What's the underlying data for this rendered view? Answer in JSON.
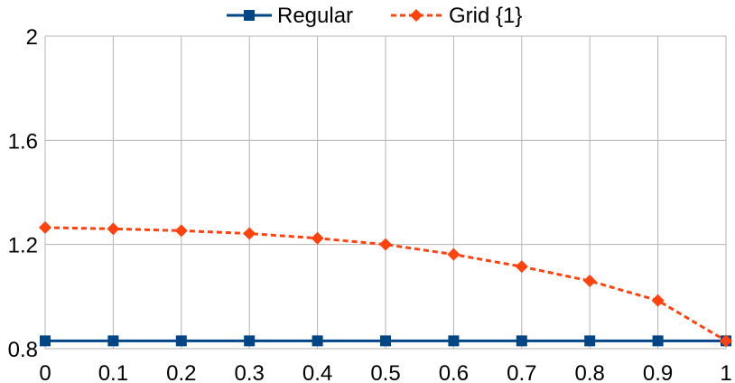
{
  "chart_data": {
    "type": "line",
    "title": "",
    "xlabel": "",
    "ylabel": "",
    "x": [
      0,
      0.1,
      0.2,
      0.3,
      0.4,
      0.5,
      0.6,
      0.7,
      0.8,
      0.9,
      1
    ],
    "x_tick_labels": [
      "0",
      "0.1",
      "0.2",
      "0.3",
      "0.4",
      "0.5",
      "0.6",
      "0.7",
      "0.8",
      "0.9",
      "1"
    ],
    "xlim": [
      0,
      1
    ],
    "ylim": [
      0.8,
      2
    ],
    "y_ticks": [
      0.8,
      1.2,
      1.6,
      2
    ],
    "y_tick_labels": [
      "0.8",
      "1.2",
      "1.6",
      "2"
    ],
    "grid": true,
    "legend_position": "top",
    "series": [
      {
        "name": "Regular",
        "color": "#004586",
        "line_style": "solid",
        "marker": "square",
        "values": [
          0.83,
          0.83,
          0.83,
          0.83,
          0.83,
          0.83,
          0.83,
          0.83,
          0.83,
          0.83,
          0.83
        ]
      },
      {
        "name": "Grid {1}",
        "color": "#ff420e",
        "line_style": "dashed",
        "marker": "diamond",
        "values": [
          1.265,
          1.26,
          1.253,
          1.242,
          1.224,
          1.2,
          1.162,
          1.115,
          1.06,
          0.985,
          0.83
        ]
      }
    ]
  }
}
